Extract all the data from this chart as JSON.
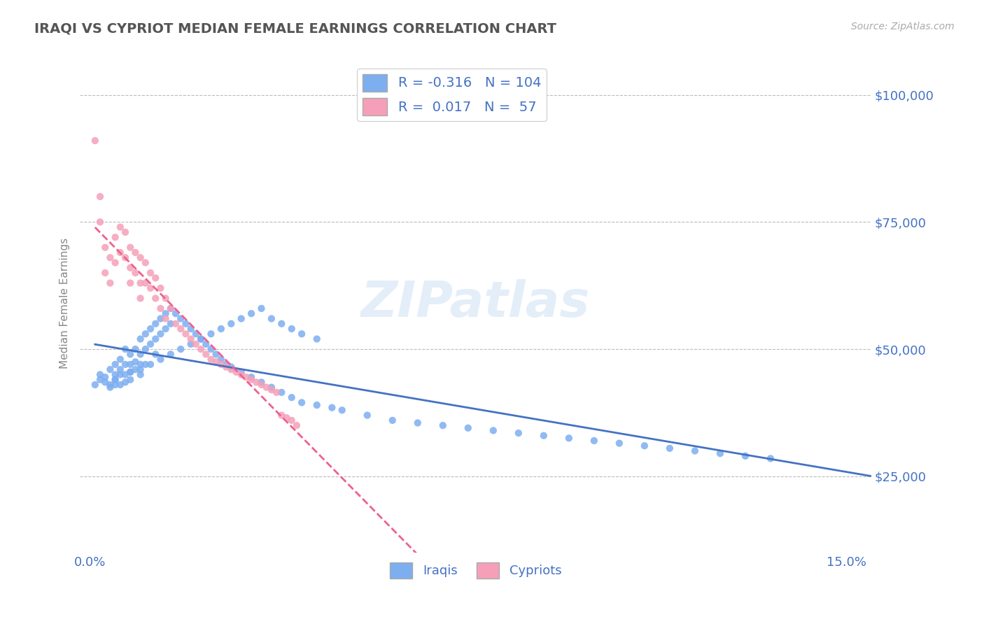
{
  "title": "IRAQI VS CYPRIOT MEDIAN FEMALE EARNINGS CORRELATION CHART",
  "source_text": "Source: ZipAtlas.com",
  "ylabel": "Median Female Earnings",
  "xlim": [
    -0.002,
    0.155
  ],
  "ylim": [
    10000,
    108000
  ],
  "ytick_labels": [
    "$25,000",
    "$50,000",
    "$75,000",
    "$100,000"
  ],
  "ytick_vals": [
    25000,
    50000,
    75000,
    100000
  ],
  "xtick_vals": [
    0.0,
    0.15
  ],
  "xtick_labels": [
    "0.0%",
    "15.0%"
  ],
  "iraqis_color": "#7daef0",
  "cypriots_color": "#f5a0b8",
  "iraqis_line_color": "#4472c4",
  "cypriots_line_color": "#f06090",
  "title_color": "#555555",
  "axis_label_color": "#4472c4",
  "legend_text_color": "#4472c4",
  "R_iraqis": -0.316,
  "N_iraqis": 104,
  "R_cypriots": 0.017,
  "N_cypriots": 57,
  "background_color": "#ffffff",
  "watermark": "ZIPatlas",
  "iraqis_scatter_x": [
    0.001,
    0.002,
    0.002,
    0.003,
    0.003,
    0.004,
    0.004,
    0.004,
    0.005,
    0.005,
    0.005,
    0.005,
    0.006,
    0.006,
    0.006,
    0.006,
    0.007,
    0.007,
    0.007,
    0.007,
    0.008,
    0.008,
    0.008,
    0.008,
    0.009,
    0.009,
    0.009,
    0.01,
    0.01,
    0.01,
    0.01,
    0.011,
    0.011,
    0.011,
    0.012,
    0.012,
    0.013,
    0.013,
    0.013,
    0.014,
    0.014,
    0.015,
    0.015,
    0.016,
    0.016,
    0.017,
    0.018,
    0.019,
    0.02,
    0.021,
    0.022,
    0.023,
    0.024,
    0.025,
    0.026,
    0.027,
    0.028,
    0.03,
    0.032,
    0.034,
    0.036,
    0.038,
    0.04,
    0.042,
    0.045,
    0.048,
    0.05,
    0.055,
    0.06,
    0.065,
    0.07,
    0.075,
    0.08,
    0.085,
    0.09,
    0.095,
    0.1,
    0.105,
    0.11,
    0.115,
    0.12,
    0.125,
    0.13,
    0.135,
    0.005,
    0.008,
    0.01,
    0.012,
    0.014,
    0.016,
    0.018,
    0.02,
    0.022,
    0.024,
    0.026,
    0.028,
    0.03,
    0.032,
    0.034,
    0.036,
    0.038,
    0.04,
    0.042,
    0.045
  ],
  "iraqis_scatter_y": [
    43000,
    44000,
    45000,
    43500,
    44500,
    46000,
    43000,
    42500,
    47000,
    45000,
    44000,
    43000,
    48000,
    46000,
    45000,
    43000,
    50000,
    47000,
    45000,
    43500,
    49000,
    47000,
    45500,
    44000,
    50000,
    47500,
    46000,
    52000,
    49000,
    47000,
    45000,
    53000,
    50000,
    47000,
    54000,
    51000,
    55000,
    52000,
    49000,
    56000,
    53000,
    57000,
    54000,
    58000,
    55000,
    57000,
    56000,
    55000,
    54000,
    53000,
    52000,
    51000,
    50000,
    49000,
    48000,
    47000,
    46500,
    45500,
    44500,
    43500,
    42500,
    41500,
    40500,
    39500,
    39000,
    38500,
    38000,
    37000,
    36000,
    35500,
    35000,
    34500,
    34000,
    33500,
    33000,
    32500,
    32000,
    31500,
    31000,
    30500,
    30000,
    29500,
    29000,
    28500,
    44000,
    45500,
    46000,
    47000,
    48000,
    49000,
    50000,
    51000,
    52000,
    53000,
    54000,
    55000,
    56000,
    57000,
    58000,
    56000,
    55000,
    54000,
    53000,
    52000
  ],
  "cypriots_scatter_x": [
    0.001,
    0.002,
    0.002,
    0.003,
    0.003,
    0.004,
    0.004,
    0.005,
    0.005,
    0.006,
    0.006,
    0.007,
    0.007,
    0.008,
    0.008,
    0.008,
    0.009,
    0.009,
    0.01,
    0.01,
    0.01,
    0.011,
    0.011,
    0.012,
    0.012,
    0.013,
    0.013,
    0.014,
    0.014,
    0.015,
    0.015,
    0.016,
    0.017,
    0.018,
    0.019,
    0.02,
    0.021,
    0.022,
    0.023,
    0.024,
    0.025,
    0.026,
    0.027,
    0.028,
    0.029,
    0.03,
    0.031,
    0.032,
    0.033,
    0.034,
    0.035,
    0.036,
    0.037,
    0.038,
    0.039,
    0.04,
    0.041
  ],
  "cypriots_scatter_y": [
    91000,
    80000,
    75000,
    70000,
    65000,
    68000,
    63000,
    72000,
    67000,
    74000,
    69000,
    73000,
    68000,
    70000,
    66000,
    63000,
    69000,
    65000,
    68000,
    63000,
    60000,
    67000,
    63000,
    65000,
    62000,
    64000,
    60000,
    62000,
    58000,
    60000,
    56000,
    58000,
    55000,
    54000,
    53000,
    52000,
    51000,
    50000,
    49000,
    48000,
    47500,
    47000,
    46500,
    46000,
    45500,
    45000,
    44500,
    44000,
    43500,
    43000,
    42500,
    42000,
    41500,
    37000,
    36500,
    36000,
    35000
  ]
}
